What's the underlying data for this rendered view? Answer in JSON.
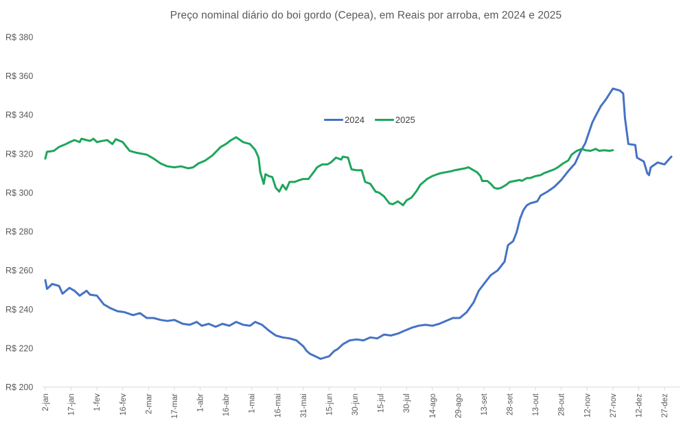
{
  "title": "Preço nominal diário do boi gordo (Cepea), em Reais por arroba, em 2024 e 2025",
  "legend": {
    "items": [
      {
        "label": "2024",
        "color": "#4472C4"
      },
      {
        "label": "2025",
        "color": "#1EA55B"
      }
    ]
  },
  "chart_data": {
    "type": "line",
    "title": "Preço nominal diário do boi gordo (Cepea), em Reais por arroba, em 2024 e 2025",
    "xlabel": "",
    "ylabel": "",
    "grid": false,
    "legend_position": "inside-top-center",
    "background": "#ffffff",
    "axis_line_color": "#D9D9D9",
    "tick_text_color": "#595959",
    "ylim": [
      200,
      380
    ],
    "y_tick_prefix": "R$ ",
    "y_tick_values": [
      380,
      360,
      340,
      320,
      300,
      280,
      260,
      240,
      220,
      200
    ],
    "y_tick_labels": [
      "R$ 380",
      "R$ 360",
      "R$ 340",
      "R$ 320",
      "R$ 300",
      "R$ 280",
      "R$ 260",
      "R$ 240",
      "R$ 220",
      "R$ 200"
    ],
    "x_unit": "day-of-year",
    "x_tick_days": [
      2,
      17,
      32,
      47,
      62,
      77,
      92,
      107,
      122,
      137,
      152,
      167,
      182,
      197,
      212,
      227,
      242,
      257,
      272,
      287,
      302,
      317,
      332,
      347,
      362
    ],
    "x_tick_labels": [
      "2-jan",
      "17-jan",
      "1-fev",
      "16-fev",
      "2-mar",
      "17-mar",
      "1-abr",
      "16-abr",
      "1-mai",
      "16-mai",
      "31-mai",
      "15-jun",
      "30-jun",
      "15-jul",
      "30-jul",
      "14-ago",
      "29-ago",
      "13-set",
      "28-set",
      "13-out",
      "28-out",
      "12-nov",
      "27-nov",
      "12-dez",
      "27-dez"
    ],
    "series": [
      {
        "name": "2024",
        "color": "#4472C4",
        "points": [
          [
            2,
            255
          ],
          [
            3,
            250.5
          ],
          [
            6,
            253
          ],
          [
            10,
            252
          ],
          [
            12,
            248
          ],
          [
            16,
            251
          ],
          [
            19,
            249.5
          ],
          [
            22,
            247
          ],
          [
            26,
            249.5
          ],
          [
            28,
            247.5
          ],
          [
            32,
            247
          ],
          [
            36,
            242.5
          ],
          [
            40,
            240.5
          ],
          [
            44,
            239
          ],
          [
            48,
            238.5
          ],
          [
            53,
            237
          ],
          [
            57,
            238
          ],
          [
            61,
            235.5
          ],
          [
            65,
            235.5
          ],
          [
            69,
            234.5
          ],
          [
            73,
            234
          ],
          [
            77,
            234.5
          ],
          [
            82,
            232.5
          ],
          [
            86,
            232
          ],
          [
            90,
            233.5
          ],
          [
            93,
            231.5
          ],
          [
            97,
            232.5
          ],
          [
            101,
            231
          ],
          [
            105,
            232.5
          ],
          [
            109,
            231.5
          ],
          [
            113,
            233.5
          ],
          [
            117,
            232
          ],
          [
            121,
            231.5
          ],
          [
            124,
            233.5
          ],
          [
            128,
            232
          ],
          [
            132,
            229
          ],
          [
            136,
            226.5
          ],
          [
            140,
            225.5
          ],
          [
            144,
            225
          ],
          [
            148,
            224
          ],
          [
            152,
            221
          ],
          [
            154,
            218.5
          ],
          [
            156,
            217
          ],
          [
            159,
            215.8
          ],
          [
            162,
            214.5
          ],
          [
            164,
            215
          ],
          [
            167,
            215.8
          ],
          [
            170,
            218.5
          ],
          [
            172,
            219.5
          ],
          [
            175,
            222
          ],
          [
            179,
            224
          ],
          [
            183,
            224.5
          ],
          [
            187,
            224
          ],
          [
            191,
            225.5
          ],
          [
            195,
            225
          ],
          [
            199,
            227
          ],
          [
            203,
            226.5
          ],
          [
            207,
            227.5
          ],
          [
            211,
            229
          ],
          [
            215,
            230.5
          ],
          [
            219,
            231.5
          ],
          [
            223,
            232
          ],
          [
            227,
            231.5
          ],
          [
            231,
            232.5
          ],
          [
            235,
            234
          ],
          [
            239,
            235.5
          ],
          [
            243,
            235.5
          ],
          [
            247,
            238.5
          ],
          [
            251,
            243.5
          ],
          [
            254,
            249.5
          ],
          [
            257,
            253
          ],
          [
            261,
            257.5
          ],
          [
            265,
            260
          ],
          [
            269,
            264.5
          ],
          [
            271,
            273
          ],
          [
            274,
            275
          ],
          [
            276,
            279.5
          ],
          [
            278,
            286.5
          ],
          [
            280,
            291
          ],
          [
            282,
            293.5
          ],
          [
            284,
            294.5
          ],
          [
            288,
            295.5
          ],
          [
            290,
            298.5
          ],
          [
            294,
            300.5
          ],
          [
            298,
            303
          ],
          [
            302,
            306.5
          ],
          [
            306,
            311
          ],
          [
            310,
            315
          ],
          [
            313,
            320.8
          ],
          [
            316,
            325.5
          ],
          [
            320,
            336
          ],
          [
            322,
            339.5
          ],
          [
            325,
            344.5
          ],
          [
            328,
            348
          ],
          [
            332,
            353.5
          ],
          [
            336,
            352.5
          ],
          [
            338,
            351
          ],
          [
            339,
            338.5
          ],
          [
            341,
            325
          ],
          [
            345,
            324.5
          ],
          [
            346,
            318
          ],
          [
            350,
            316
          ],
          [
            352,
            310
          ],
          [
            353,
            309
          ],
          [
            354,
            313
          ],
          [
            358,
            315.5
          ],
          [
            362,
            314.5
          ],
          [
            365,
            317.5
          ],
          [
            366,
            318.5
          ]
        ]
      },
      {
        "name": "2025",
        "color": "#1EA55B",
        "points": [
          [
            2,
            317.5
          ],
          [
            3,
            321
          ],
          [
            7,
            321.5
          ],
          [
            10,
            323.5
          ],
          [
            14,
            325
          ],
          [
            17,
            326.3
          ],
          [
            19,
            327
          ],
          [
            22,
            326
          ],
          [
            23,
            327.7
          ],
          [
            26,
            327
          ],
          [
            28,
            326.6
          ],
          [
            30,
            327.7
          ],
          [
            32,
            326
          ],
          [
            35,
            326.6
          ],
          [
            38,
            327
          ],
          [
            41,
            325
          ],
          [
            43,
            327.5
          ],
          [
            47,
            326
          ],
          [
            51,
            321.5
          ],
          [
            55,
            320.5
          ],
          [
            61,
            319.5
          ],
          [
            65,
            317.5
          ],
          [
            69,
            315
          ],
          [
            73,
            313.5
          ],
          [
            77,
            313
          ],
          [
            81,
            313.5
          ],
          [
            85,
            312.5
          ],
          [
            88,
            313
          ],
          [
            91,
            315
          ],
          [
            95,
            316.5
          ],
          [
            99,
            319
          ],
          [
            104,
            323.5
          ],
          [
            107,
            325
          ],
          [
            110,
            327
          ],
          [
            113,
            328.5
          ],
          [
            117,
            326
          ],
          [
            121,
            325
          ],
          [
            124,
            322
          ],
          [
            126,
            318
          ],
          [
            127,
            310.5
          ],
          [
            129,
            304.5
          ],
          [
            130,
            309.5
          ],
          [
            132,
            308.5
          ],
          [
            134,
            308
          ],
          [
            136,
            302.5
          ],
          [
            138,
            300.5
          ],
          [
            140,
            304
          ],
          [
            142,
            301.5
          ],
          [
            144,
            305.5
          ],
          [
            147,
            305.5
          ],
          [
            150,
            306.5
          ],
          [
            152,
            307
          ],
          [
            155,
            307
          ],
          [
            158,
            310.5
          ],
          [
            160,
            313
          ],
          [
            163,
            314.5
          ],
          [
            166,
            314.5
          ],
          [
            168,
            315.5
          ],
          [
            171,
            318
          ],
          [
            174,
            317
          ],
          [
            175,
            318.5
          ],
          [
            178,
            318
          ],
          [
            180,
            312
          ],
          [
            183,
            311.5
          ],
          [
            186,
            311.5
          ],
          [
            188,
            305.5
          ],
          [
            191,
            304.5
          ],
          [
            194,
            300.5
          ],
          [
            196,
            300
          ],
          [
            199,
            298
          ],
          [
            202,
            294.5
          ],
          [
            204,
            294
          ],
          [
            207,
            295.5
          ],
          [
            210,
            293.5
          ],
          [
            212,
            296
          ],
          [
            215,
            297.5
          ],
          [
            218,
            301
          ],
          [
            220,
            304
          ],
          [
            222,
            305.5
          ],
          [
            224,
            307
          ],
          [
            227,
            308.5
          ],
          [
            230,
            309.5
          ],
          [
            232,
            310
          ],
          [
            235,
            310.5
          ],
          [
            238,
            311
          ],
          [
            240,
            311.5
          ],
          [
            243,
            312
          ],
          [
            246,
            312.5
          ],
          [
            248,
            313
          ],
          [
            251,
            311.5
          ],
          [
            253,
            310.5
          ],
          [
            255,
            308.5
          ],
          [
            256,
            306
          ],
          [
            259,
            306
          ],
          [
            261,
            304.5
          ],
          [
            263,
            302.5
          ],
          [
            265,
            302
          ],
          [
            267,
            302.5
          ],
          [
            270,
            304
          ],
          [
            272,
            305.5
          ],
          [
            275,
            306
          ],
          [
            278,
            306.5
          ],
          [
            279,
            306
          ],
          [
            282,
            307.5
          ],
          [
            284,
            307.5
          ],
          [
            287,
            308.5
          ],
          [
            290,
            309
          ],
          [
            292,
            310
          ],
          [
            295,
            311
          ],
          [
            298,
            312
          ],
          [
            300,
            313
          ],
          [
            303,
            315
          ],
          [
            306,
            316.5
          ],
          [
            308,
            319.5
          ],
          [
            311,
            321.5
          ],
          [
            314,
            322.5
          ],
          [
            316,
            321.8
          ],
          [
            319,
            321.5
          ],
          [
            322,
            322.5
          ],
          [
            324,
            321.5
          ],
          [
            327,
            321.8
          ],
          [
            330,
            321.5
          ],
          [
            332,
            321.8
          ]
        ]
      }
    ]
  }
}
